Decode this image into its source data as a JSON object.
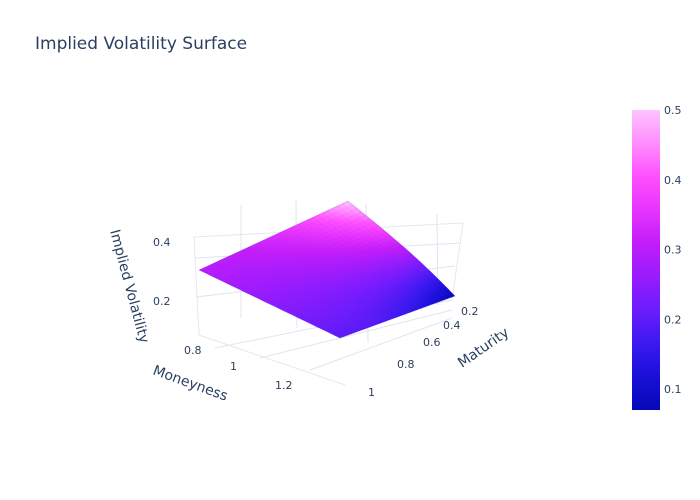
{
  "chart_data": {
    "type": "surface",
    "title": "Implied Volatility Surface",
    "xlabel": "Moneyness",
    "ylabel": "Maturity",
    "zlabel": "Implied Volatility",
    "x_ticks": [
      0.8,
      1,
      1.2
    ],
    "y_ticks": [
      0.2,
      0.4,
      0.6,
      0.8,
      1
    ],
    "z_ticks": [
      0.2,
      0.4
    ],
    "xlim": [
      0.7,
      1.3
    ],
    "ylim": [
      0.1,
      1.0
    ],
    "zlim": [
      0.07,
      0.5
    ],
    "corner_values": [
      {
        "moneyness": 0.7,
        "maturity": 0.1,
        "iv": 0.5
      },
      {
        "moneyness": 0.7,
        "maturity": 1.0,
        "iv": 0.3
      },
      {
        "moneyness": 1.3,
        "maturity": 1.0,
        "iv": 0.2
      },
      {
        "moneyness": 1.3,
        "maturity": 0.1,
        "iv": 0.07
      }
    ],
    "colorbar": {
      "ticks": [
        0.1,
        0.2,
        0.3,
        0.4,
        0.5
      ],
      "range": [
        0.07,
        0.5
      ],
      "colors": [
        "#0508b8",
        "#1910d8",
        "#3c19f0",
        "#6b1cfb",
        "#981cfd",
        "#c21dfa",
        "#e634fe",
        "#fe4ffe",
        "#fe8efe",
        "#fec3fe"
      ]
    }
  }
}
